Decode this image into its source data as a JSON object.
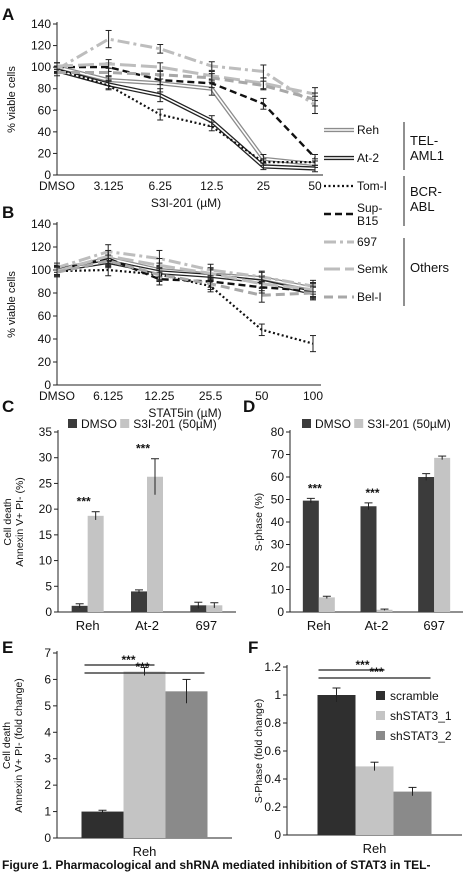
{
  "caption": "Figure 1. Pharmacological and shRNA mediated inhibition of STAT3 in TEL-",
  "legend_ab": {
    "entries": [
      {
        "label": "Reh",
        "style": "double-gray"
      },
      {
        "label": "At-2",
        "style": "double-black"
      },
      {
        "label": "Tom-I",
        "style": "dotted"
      },
      {
        "label": "Sup-B15",
        "style": "dash-black"
      },
      {
        "label": "697",
        "style": "dashdot-gray"
      },
      {
        "label": "Semk",
        "style": "longdash-gray"
      },
      {
        "label": "Bel-I",
        "style": "dash-gray"
      }
    ],
    "groups": [
      {
        "label": "TEL-AML1",
        "lines": [
          "TEL-",
          "AML1"
        ]
      },
      {
        "label": "BCR-ABL",
        "lines": [
          "BCR-",
          "ABL"
        ]
      },
      {
        "label": "Others",
        "lines": [
          "Others"
        ]
      }
    ]
  },
  "chart_data": [
    {
      "panel": "A",
      "type": "line",
      "x": [
        "DMSO",
        "3.125",
        "6.25",
        "12.5",
        "25",
        "50"
      ],
      "xlabel": "S3I-201 (µM)",
      "ylabel": "% viable cells",
      "ylim": [
        0,
        140
      ],
      "yticks": [
        0,
        20,
        40,
        60,
        80,
        100,
        120,
        140
      ],
      "series": [
        {
          "name": "Reh",
          "style": "double-gray",
          "values": [
            100,
            88,
            85,
            80,
            15,
            10
          ],
          "errors": [
            4,
            4,
            8,
            6,
            4,
            3
          ]
        },
        {
          "name": "At-2",
          "style": "double-black",
          "values": [
            97,
            84,
            74,
            50,
            8,
            6
          ],
          "errors": [
            3,
            4,
            6,
            5,
            3,
            3
          ]
        },
        {
          "name": "Tom-I",
          "style": "dotted",
          "values": [
            98,
            83,
            56,
            45,
            12,
            12
          ],
          "errors": [
            3,
            4,
            5,
            4,
            3,
            3
          ]
        },
        {
          "name": "Sup-B15",
          "style": "dash-black",
          "values": [
            100,
            100,
            88,
            85,
            66,
            16
          ],
          "errors": [
            4,
            4,
            4,
            4,
            5,
            3
          ]
        },
        {
          "name": "697",
          "style": "dashdot-gray",
          "values": [
            98,
            126,
            117,
            101,
            96,
            65
          ],
          "errors": [
            3,
            8,
            4,
            4,
            6,
            8
          ]
        },
        {
          "name": "Semk",
          "style": "longdash-gray",
          "values": [
            101,
            103,
            100,
            92,
            85,
            75
          ],
          "errors": [
            3,
            4,
            4,
            4,
            5,
            6
          ]
        },
        {
          "name": "Bel-I",
          "style": "dash-gray",
          "values": [
            95,
            95,
            93,
            90,
            83,
            70
          ],
          "errors": [
            3,
            4,
            4,
            4,
            4,
            6
          ]
        }
      ]
    },
    {
      "panel": "B",
      "type": "line",
      "x": [
        "DMSO",
        "6.125",
        "12.25",
        "25.5",
        "50",
        "100"
      ],
      "xlabel": "STAT5in (µM)",
      "ylabel": "% viable cells",
      "ylim": [
        0,
        140
      ],
      "yticks": [
        0,
        20,
        40,
        60,
        80,
        100,
        120,
        140
      ],
      "series": [
        {
          "name": "Reh",
          "style": "double-gray",
          "values": [
            100,
            110,
            100,
            96,
            93,
            84
          ],
          "errors": [
            4,
            5,
            6,
            5,
            5,
            5
          ]
        },
        {
          "name": "At-2",
          "style": "double-black",
          "values": [
            100,
            107,
            98,
            95,
            90,
            80
          ],
          "errors": [
            4,
            5,
            6,
            5,
            5,
            5
          ]
        },
        {
          "name": "Tom-I",
          "style": "dotted",
          "values": [
            99,
            100,
            96,
            86,
            48,
            36
          ],
          "errors": [
            4,
            5,
            5,
            5,
            5,
            7
          ]
        },
        {
          "name": "Sup-B15",
          "style": "dash-black",
          "values": [
            100,
            110,
            92,
            90,
            85,
            82
          ],
          "errors": [
            4,
            6,
            5,
            5,
            5,
            6
          ]
        },
        {
          "name": "697",
          "style": "dashdot-gray",
          "values": [
            102,
            116,
            110,
            100,
            94,
            86
          ],
          "errors": [
            4,
            6,
            7,
            5,
            5,
            5
          ]
        },
        {
          "name": "Semk",
          "style": "longdash-gray",
          "values": [
            99,
            112,
            104,
            97,
            88,
            83
          ],
          "errors": [
            4,
            5,
            6,
            5,
            6,
            6
          ]
        },
        {
          "name": "Bel-I",
          "style": "dash-gray",
          "values": [
            98,
            108,
            96,
            88,
            78,
            80
          ],
          "errors": [
            4,
            5,
            6,
            5,
            6,
            6
          ]
        }
      ]
    },
    {
      "panel": "C",
      "type": "bar",
      "categories": [
        "Reh",
        "At-2",
        "697"
      ],
      "ylabel": "Cell death\nAnnexin V+ PI- (%)",
      "ylim": [
        0,
        35
      ],
      "yticks": [
        0,
        5,
        10,
        15,
        20,
        25,
        30,
        35
      ],
      "series": [
        {
          "name": "DMSO",
          "color": "#3b3b3b",
          "values": [
            1.2,
            4.0,
            1.3
          ],
          "errors": [
            0.4,
            0.3,
            0.6
          ]
        },
        {
          "name": "S3I-201 (50µM)",
          "color": "#c4c4c4",
          "values": [
            18.7,
            26.3,
            1.3
          ],
          "errors": [
            0.8,
            3.5,
            0.5
          ]
        }
      ],
      "significance": [
        {
          "category": "Reh",
          "text": "***"
        },
        {
          "category": "At-2",
          "text": "***"
        }
      ]
    },
    {
      "panel": "D",
      "type": "bar",
      "categories": [
        "Reh",
        "At-2",
        "697"
      ],
      "ylabel": "S-phase (%)",
      "ylim": [
        0,
        80
      ],
      "yticks": [
        0,
        10,
        20,
        30,
        40,
        50,
        60,
        70,
        80
      ],
      "series": [
        {
          "name": "DMSO",
          "color": "#3b3b3b",
          "values": [
            49.5,
            47,
            60
          ],
          "errors": [
            1,
            1.5,
            1.5
          ]
        },
        {
          "name": "S3I-201 (50µM)",
          "color": "#c4c4c4",
          "values": [
            6.5,
            1,
            68.5
          ],
          "errors": [
            0.5,
            0.3,
            0.8
          ]
        }
      ],
      "significance": [
        {
          "category": "Reh",
          "text": "***"
        },
        {
          "category": "At-2",
          "text": "***"
        }
      ]
    },
    {
      "panel": "E",
      "type": "bar",
      "categories": [
        "Reh"
      ],
      "ylabel": "Cell death\nAnnexin V+ PI- (fold change)",
      "ylim": [
        0,
        7
      ],
      "yticks": [
        0,
        1,
        2,
        3,
        4,
        5,
        6,
        7
      ],
      "series": [
        {
          "name": "scramble",
          "color": "#2f2f2f",
          "values": [
            1.0
          ],
          "errors": [
            0.05
          ]
        },
        {
          "name": "shSTAT3_1",
          "color": "#c4c4c4",
          "values": [
            6.3
          ],
          "errors": [
            0.15
          ]
        },
        {
          "name": "shSTAT3_2",
          "color": "#8a8a8a",
          "values": [
            5.55
          ],
          "errors": [
            0.45
          ]
        }
      ],
      "significance": [
        {
          "text": "***",
          "from": 0,
          "to": 1
        },
        {
          "text": "***",
          "from": 0,
          "to": 2
        }
      ]
    },
    {
      "panel": "F",
      "type": "bar",
      "categories": [
        "Reh"
      ],
      "ylabel": "S-Phase (fold change)",
      "ylim": [
        0,
        1.2
      ],
      "yticks": [
        0,
        0.2,
        0.4,
        0.6,
        0.8,
        1,
        1.2
      ],
      "series": [
        {
          "name": "scramble",
          "color": "#2f2f2f",
          "values": [
            1.0
          ],
          "errors": [
            0.05
          ]
        },
        {
          "name": "shSTAT3_1",
          "color": "#c4c4c4",
          "values": [
            0.49
          ],
          "errors": [
            0.03
          ]
        },
        {
          "name": "shSTAT3_2",
          "color": "#8a8a8a",
          "values": [
            0.31
          ],
          "errors": [
            0.03
          ]
        }
      ],
      "significance": [
        {
          "text": "***",
          "from": 0,
          "to": 1
        },
        {
          "text": "***",
          "from": 0,
          "to": 2
        }
      ]
    }
  ]
}
